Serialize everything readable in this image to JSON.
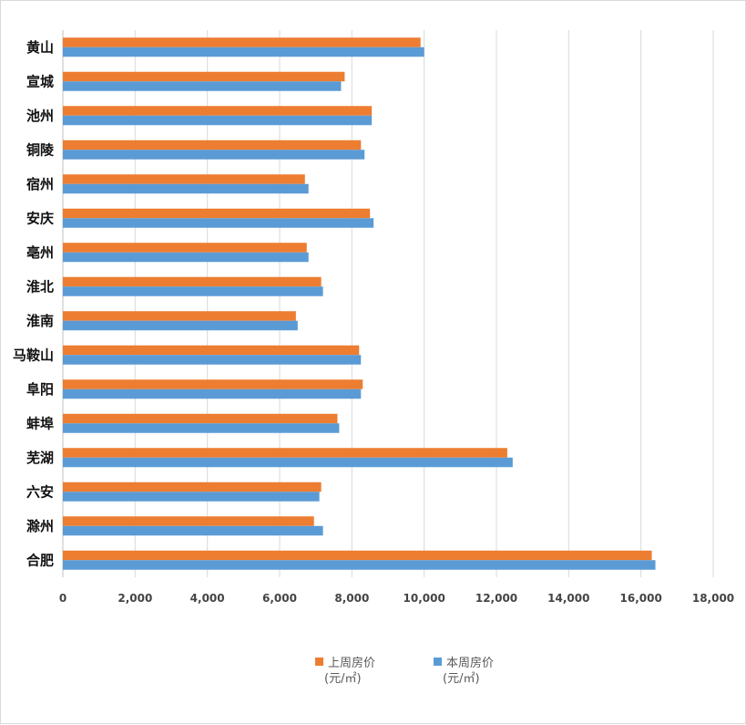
{
  "chart_data": {
    "type": "bar",
    "orientation": "horizontal",
    "categories": [
      "黄山",
      "宣城",
      "池州",
      "铜陵",
      "宿州",
      "安庆",
      "亳州",
      "淮北",
      "淮南",
      "马鞍山",
      "阜阳",
      "蚌埠",
      "芜湖",
      "六安",
      "滁州",
      "合肥"
    ],
    "series": [
      {
        "name": "上周房价\n(元/㎡)",
        "line1": "上周房价",
        "line2": "(元/㎡)",
        "color": "#ED7D31",
        "values": [
          9900,
          7800,
          8550,
          8250,
          6700,
          8500,
          6750,
          7150,
          6450,
          8200,
          8300,
          7600,
          12300,
          7150,
          6950,
          16300
        ]
      },
      {
        "name": "本周房价\n(元/㎡)",
        "line1": "本周房价",
        "line2": "(元/㎡)",
        "color": "#5B9BD5",
        "values": [
          10000,
          7700,
          8550,
          8350,
          6800,
          8600,
          6800,
          7200,
          6500,
          8250,
          8250,
          7650,
          12450,
          7100,
          7200,
          16400
        ]
      }
    ],
    "x_ticks": [
      "0",
      "2,000",
      "4,000",
      "6,000",
      "8,000",
      "10,000",
      "12,000",
      "14,000",
      "16,000",
      "18,000"
    ],
    "xlim": [
      0,
      18000
    ],
    "grid": "vertical",
    "legend_position": "bottom",
    "title": ""
  }
}
